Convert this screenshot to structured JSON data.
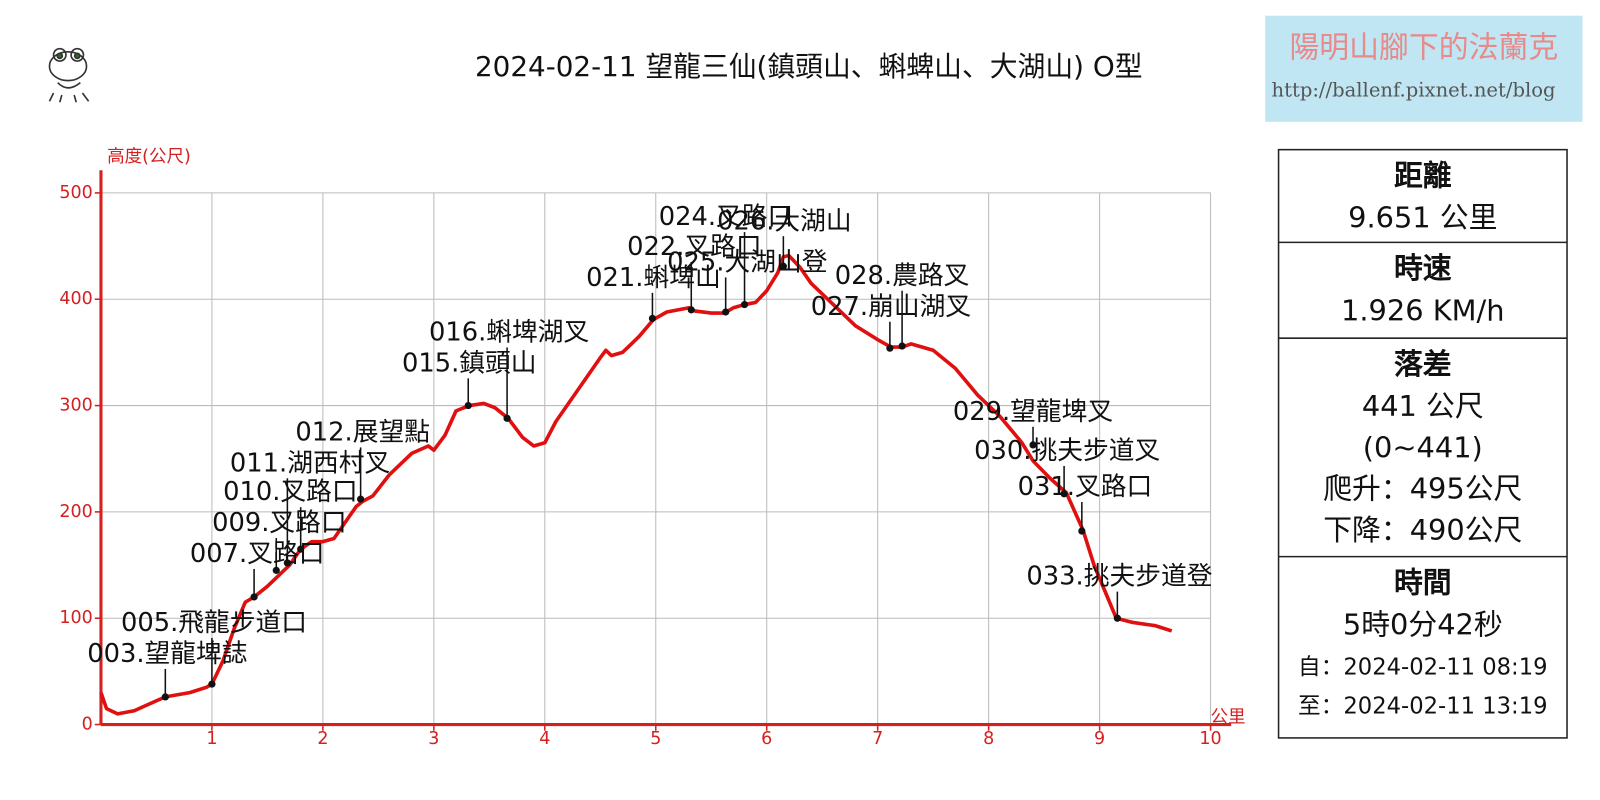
{
  "chart_data": {
    "type": "line",
    "title": "2024-02-11 望龍三仙(鎮頭山、蝌蜱山、大湖山) O型",
    "y_label": "高度(公尺)",
    "x_label": "公里",
    "color": "#e01010",
    "axis_color": "#d42020",
    "grid": true,
    "xlim": [
      0,
      10
    ],
    "xticks": [
      1,
      2,
      3,
      4,
      5,
      6,
      7,
      8,
      9,
      10
    ],
    "ylim": [
      0,
      500
    ],
    "yticks": [
      0,
      100,
      200,
      300,
      400,
      500
    ],
    "x": [
      0,
      0.05,
      0.15,
      0.3,
      0.45,
      0.58,
      0.8,
      0.95,
      1.0,
      1.1,
      1.2,
      1.3,
      1.38,
      1.5,
      1.6,
      1.7,
      1.8,
      1.9,
      2.0,
      2.1,
      2.2,
      2.3,
      2.36,
      2.45,
      2.6,
      2.8,
      2.95,
      3.0,
      3.1,
      3.2,
      3.32,
      3.45,
      3.55,
      3.67,
      3.8,
      3.9,
      4.0,
      4.1,
      4.3,
      4.5,
      4.55,
      4.6,
      4.7,
      4.85,
      4.98,
      5.1,
      5.3,
      5.35,
      5.5,
      5.62,
      5.7,
      5.8,
      5.9,
      6.0,
      6.1,
      6.15,
      6.2,
      6.3,
      6.4,
      6.5,
      6.6,
      6.8,
      7.0,
      7.12,
      7.22,
      7.3,
      7.5,
      7.7,
      7.9,
      8.1,
      8.3,
      8.4,
      8.55,
      8.7,
      8.85,
      8.95,
      9.05,
      9.15,
      9.3,
      9.5,
      9.65
    ],
    "values": [
      30,
      15,
      10,
      13,
      20,
      26,
      30,
      35,
      38,
      60,
      90,
      115,
      120,
      130,
      140,
      150,
      165,
      172,
      172,
      175,
      190,
      205,
      210,
      215,
      235,
      255,
      262,
      258,
      272,
      295,
      300,
      302,
      298,
      288,
      270,
      262,
      265,
      285,
      315,
      345,
      352,
      347,
      350,
      365,
      381,
      388,
      392,
      389,
      387,
      387,
      392,
      395,
      397,
      408,
      425,
      440,
      441,
      430,
      415,
      405,
      395,
      375,
      362,
      355,
      355,
      358,
      352,
      335,
      310,
      290,
      265,
      248,
      232,
      218,
      183,
      150,
      125,
      100,
      96,
      93,
      88
    ],
    "waypoints": [
      {
        "label": "003.望龍埤誌",
        "x": 0.58,
        "y": 26
      },
      {
        "label": "005.飛龍步道口",
        "x": 1.0,
        "y": 38
      },
      {
        "label": "007.叉路口",
        "x": 1.38,
        "y": 120
      },
      {
        "label": "009.叉路口",
        "x": 1.58,
        "y": 145
      },
      {
        "label": "010.叉路口",
        "x": 1.8,
        "y": 165
      },
      {
        "label": "011.湖西村叉",
        "x": 1.68,
        "y": 152
      },
      {
        "label": "012.展望點",
        "x": 2.34,
        "y": 212
      },
      {
        "label": "015.鎮頭山",
        "x": 3.31,
        "y": 300
      },
      {
        "label": "016.蝌埤湖叉",
        "x": 3.66,
        "y": 288
      },
      {
        "label": "021.蝌埤山",
        "x": 4.97,
        "y": 382
      },
      {
        "label": "022.叉路口",
        "x": 5.32,
        "y": 390
      },
      {
        "label": "024.叉路口",
        "x": 5.8,
        "y": 395
      },
      {
        "label": "025.大湖山登",
        "x": 5.63,
        "y": 388
      },
      {
        "label": "026.大湖山",
        "x": 6.15,
        "y": 431
      },
      {
        "label": "027.崩山湖叉",
        "x": 7.11,
        "y": 354
      },
      {
        "label": "028.農路叉",
        "x": 7.22,
        "y": 356
      },
      {
        "label": "029.望龍埤叉",
        "x": 8.4,
        "y": 263
      },
      {
        "label": "030.挑夫步道叉",
        "x": 8.68,
        "y": 217
      },
      {
        "label": "031.叉路口",
        "x": 8.84,
        "y": 182
      },
      {
        "label": "033.挑夫步道登",
        "x": 9.16,
        "y": 100
      }
    ]
  },
  "banner": {
    "title": "陽明山腳下的法蘭克",
    "url": "http://ballenf.pixnet.net/blog"
  },
  "stats": [
    {
      "heading": "距離",
      "lines": [
        "9.651 公里"
      ]
    },
    {
      "heading": "時速",
      "lines": [
        "1.926 KM/h"
      ]
    },
    {
      "heading": "落差",
      "lines": [
        "441 公尺",
        "(0~441)",
        "爬升：495公尺",
        "下降：490公尺"
      ]
    },
    {
      "heading": "時間",
      "lines": [
        "5時0分42秒",
        "自：2024-02-11 08:19",
        "至：2024-02-11 13:19"
      ]
    }
  ]
}
